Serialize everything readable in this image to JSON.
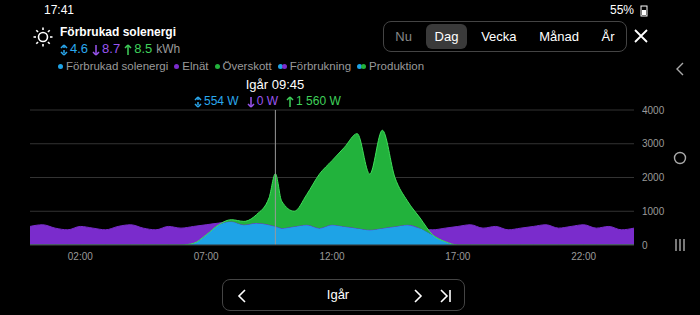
{
  "status_bar": {
    "time": "17:41",
    "battery": "55%"
  },
  "header": {
    "title": "Förbrukad solenergi",
    "totals": [
      {
        "value": 4.6,
        "color": "#2aa8ee"
      },
      {
        "value": 8.7,
        "color": "#9a55f0"
      },
      {
        "value": 8.5,
        "color": "#3fd15a"
      }
    ],
    "unit": "kWh"
  },
  "tabs": [
    "Nu",
    "Dag",
    "Vecka",
    "Månad",
    "År"
  ],
  "selected_tab": "Dag",
  "navigation": {
    "label": "Igår"
  },
  "chart_data": {
    "type": "area",
    "stacked": true,
    "grid": true,
    "x": [
      0,
      0.5,
      1,
      1.5,
      2,
      2.5,
      3,
      3.5,
      4,
      4.5,
      5,
      5.5,
      6,
      6.5,
      7,
      7.5,
      8,
      8.5,
      9,
      9.5,
      9.75,
      10,
      10.5,
      11,
      11.5,
      12,
      12.5,
      13,
      13.5,
      14,
      14.5,
      15,
      15.5,
      16,
      16.5,
      17,
      17.5,
      18,
      18.5,
      19,
      19.5,
      20,
      20.5,
      21,
      21.5,
      22,
      22.5,
      23,
      23.5,
      24
    ],
    "xlim": [
      0,
      24
    ],
    "xticks": [
      {
        "value": 2,
        "label": "02:00"
      },
      {
        "value": 7,
        "label": "07:00"
      },
      {
        "value": 12,
        "label": "12:00"
      },
      {
        "value": 17,
        "label": "17:00"
      },
      {
        "value": 22,
        "label": "22:00"
      }
    ],
    "ylim": [
      0,
      4000
    ],
    "yticks": [
      0,
      1000,
      2000,
      3000,
      4000
    ],
    "series": [
      {
        "name": "Förbrukad solenergi",
        "color": "#1ea3e6",
        "values": [
          0,
          0,
          0,
          0,
          0,
          0,
          0,
          0,
          0,
          0,
          0,
          0,
          0,
          50,
          300,
          600,
          700,
          600,
          650,
          600,
          554,
          500,
          550,
          600,
          500,
          600,
          550,
          500,
          450,
          500,
          550,
          600,
          500,
          300,
          100,
          0,
          0,
          0,
          0,
          0,
          0,
          0,
          0,
          0,
          0,
          0,
          0,
          0,
          0,
          0
        ]
      },
      {
        "name": "Elnät",
        "color": "#7a2ccc",
        "values": [
          550,
          600,
          500,
          450,
          550,
          500,
          450,
          550,
          600,
          500,
          450,
          550,
          500,
          500,
          300,
          50,
          0,
          0,
          0,
          0,
          0,
          0,
          0,
          0,
          0,
          0,
          0,
          0,
          0,
          0,
          0,
          0,
          0,
          150,
          400,
          550,
          600,
          500,
          550,
          450,
          500,
          550,
          600,
          500,
          550,
          600,
          500,
          550,
          450,
          500
        ]
      },
      {
        "name": "Överskott",
        "color": "#22b23c",
        "values": [
          0,
          0,
          0,
          0,
          0,
          0,
          0,
          0,
          0,
          0,
          0,
          0,
          0,
          0,
          0,
          0,
          50,
          100,
          250,
          800,
          1560,
          800,
          450,
          900,
          1600,
          1900,
          2350,
          2800,
          1650,
          2900,
          1450,
          700,
          300,
          0,
          0,
          0,
          0,
          0,
          0,
          0,
          0,
          0,
          0,
          0,
          0,
          0,
          0,
          0,
          0,
          0
        ]
      }
    ],
    "combined_legend": [
      {
        "name": "Förbrukning",
        "colors": [
          "#1ea3e6",
          "#7a2ccc"
        ]
      },
      {
        "name": "Produktion",
        "colors": [
          "#1ea3e6",
          "#22b23c"
        ]
      }
    ],
    "tooltip": {
      "x": 9.75,
      "title": "Igår 09:45",
      "items": [
        "554 W",
        "0 W",
        "1 560 W"
      ]
    }
  }
}
